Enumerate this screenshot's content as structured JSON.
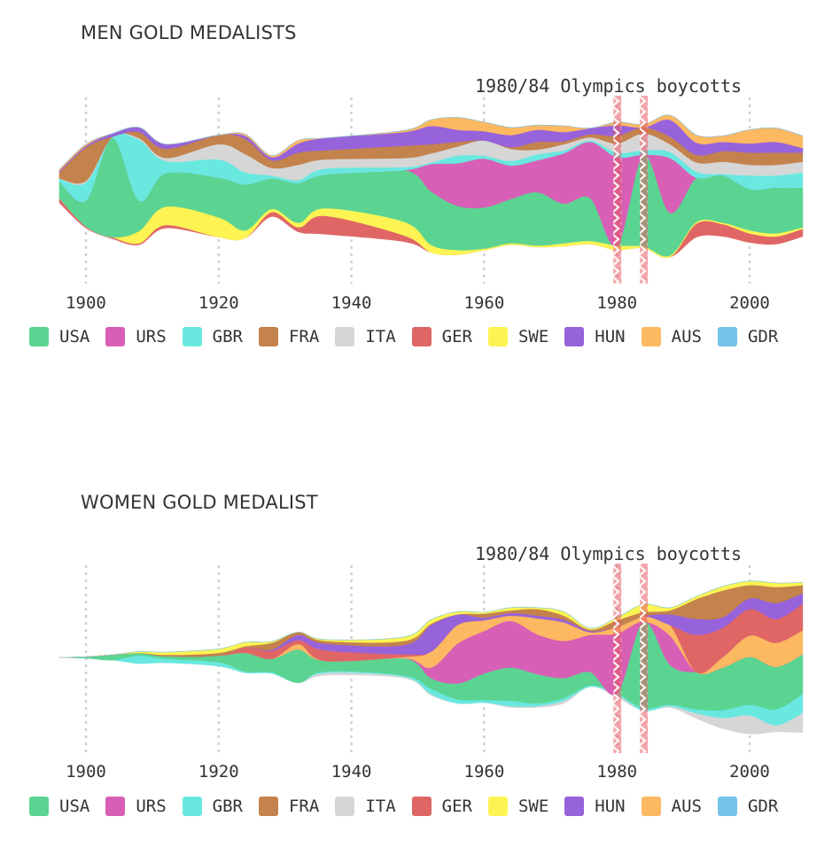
{
  "colors": {
    "USA": "#5bd492",
    "URS": "#d85fb6",
    "GBR": "#69e8e0",
    "FRA": "#c4824c",
    "ITA": "#d6d6d6",
    "GER": "#e06666",
    "SWE": "#fdf453",
    "HUN": "#9763db",
    "AUS": "#fdb862",
    "GDR": "#74c3e8"
  },
  "chart_data": [
    {
      "type": "area",
      "subtype": "streamgraph",
      "title": "MEN GOLD MEDALISTS",
      "annotation": "1980/84 Olympics boycotts",
      "boycott_years": [
        1980,
        1984
      ],
      "xlim": [
        1896,
        2008
      ],
      "x_ticks": [
        "1900",
        "1920",
        "1940",
        "1960",
        "1980",
        "2000"
      ],
      "grid": "vertical dotted at each 20 years",
      "legend": "bottom",
      "x": [
        1896,
        1900,
        1904,
        1908,
        1912,
        1920,
        1924,
        1928,
        1932,
        1936,
        1948,
        1952,
        1956,
        1960,
        1964,
        1968,
        1972,
        1976,
        1980,
        1984,
        1988,
        1992,
        1996,
        2000,
        2004,
        2008
      ],
      "series": [
        {
          "name": "GER",
          "values": [
            3,
            1,
            1,
            1,
            2,
            0,
            0,
            3,
            3,
            12,
            4,
            0,
            0,
            0,
            0,
            0,
            0,
            0,
            0,
            0,
            0,
            9,
            8,
            6,
            5,
            5
          ]
        },
        {
          "name": "SWE",
          "values": [
            0,
            0,
            0,
            8,
            12,
            13,
            5,
            2,
            3,
            5,
            9,
            5,
            3,
            1,
            1,
            1,
            2,
            2,
            3,
            1,
            1,
            1,
            1,
            2,
            2,
            1
          ]
        },
        {
          "name": "USA",
          "values": [
            11,
            17,
            65,
            20,
            22,
            26,
            30,
            20,
            26,
            22,
            34,
            35,
            29,
            27,
            29,
            35,
            26,
            28,
            0,
            60,
            28,
            29,
            31,
            27,
            30,
            26
          ]
        },
        {
          "name": "URS",
          "values": [
            0,
            0,
            0,
            0,
            0,
            0,
            0,
            0,
            0,
            0,
            0,
            18,
            28,
            32,
            22,
            21,
            33,
            37,
            58,
            0,
            36,
            0,
            0,
            0,
            0,
            0
          ]
        },
        {
          "name": "GBR",
          "values": [
            2,
            12,
            1,
            40,
            8,
            12,
            8,
            2,
            2,
            4,
            2,
            1,
            5,
            2,
            3,
            4,
            2,
            1,
            3,
            3,
            4,
            4,
            1,
            9,
            8,
            10
          ]
        },
        {
          "name": "ITA",
          "values": [
            0,
            1,
            0,
            1,
            2,
            10,
            12,
            5,
            10,
            6,
            6,
            6,
            6,
            10,
            8,
            3,
            4,
            2,
            6,
            11,
            5,
            6,
            8,
            7,
            7,
            7
          ]
        },
        {
          "name": "FRA",
          "values": [
            4,
            22,
            0,
            4,
            6,
            6,
            10,
            5,
            8,
            6,
            8,
            6,
            3,
            0,
            1,
            5,
            2,
            2,
            5,
            4,
            5,
            5,
            7,
            8,
            8,
            6
          ]
        },
        {
          "name": "HUN",
          "values": [
            1,
            1,
            2,
            3,
            3,
            0,
            2,
            2,
            6,
            8,
            9,
            12,
            8,
            6,
            8,
            8,
            6,
            4,
            7,
            0,
            11,
            8,
            6,
            6,
            7,
            3
          ]
        },
        {
          "name": "AUS",
          "values": [
            1,
            1,
            0,
            0,
            0,
            0,
            1,
            1,
            2,
            0,
            1,
            4,
            8,
            6,
            5,
            3,
            4,
            0,
            2,
            2,
            3,
            5,
            4,
            9,
            9,
            8
          ]
        },
        {
          "name": "GDR",
          "values": [
            0,
            0,
            0,
            0,
            0,
            0,
            0,
            0,
            0,
            0,
            0,
            0,
            0,
            0,
            0,
            0,
            0,
            0,
            0,
            0,
            0,
            0,
            0,
            0,
            0,
            0
          ]
        }
      ]
    },
    {
      "type": "area",
      "subtype": "streamgraph",
      "title": "WOMEN GOLD MEDALIST",
      "annotation": "1980/84 Olympics boycotts",
      "boycott_years": [
        1980,
        1984
      ],
      "xlim": [
        1896,
        2008
      ],
      "x_ticks": [
        "1900",
        "1920",
        "1940",
        "1960",
        "1980",
        "2000"
      ],
      "grid": "vertical dotted at each 20 years",
      "legend": "bottom",
      "x": [
        1896,
        1900,
        1904,
        1908,
        1912,
        1920,
        1924,
        1928,
        1932,
        1936,
        1948,
        1952,
        1956,
        1960,
        1964,
        1968,
        1972,
        1976,
        1980,
        1984,
        1988,
        1992,
        1996,
        2000,
        2004,
        2008
      ],
      "series": [
        {
          "name": "ITA",
          "values": [
            0,
            0,
            0,
            0,
            0,
            0,
            0,
            0,
            0,
            2,
            1,
            1,
            0,
            0,
            1,
            1,
            2,
            0,
            2,
            0,
            1,
            4,
            8,
            14,
            5,
            15
          ]
        },
        {
          "name": "GBR",
          "values": [
            0,
            0,
            0,
            6,
            3,
            3,
            1,
            1,
            0,
            1,
            1,
            4,
            3,
            2,
            4,
            2,
            2,
            1,
            1,
            2,
            1,
            3,
            6,
            8,
            12,
            14
          ]
        },
        {
          "name": "USA",
          "values": [
            0,
            1,
            4,
            2,
            2,
            5,
            14,
            10,
            25,
            8,
            13,
            8,
            12,
            20,
            25,
            22,
            15,
            10,
            0,
            65,
            30,
            28,
            32,
            36,
            32,
            30
          ]
        },
        {
          "name": "URS",
          "values": [
            0,
            0,
            0,
            0,
            0,
            0,
            0,
            0,
            0,
            0,
            0,
            8,
            30,
            32,
            35,
            30,
            28,
            28,
            45,
            0,
            22,
            0,
            0,
            0,
            0,
            0
          ]
        },
        {
          "name": "AUS",
          "values": [
            0,
            0,
            0,
            0,
            0,
            0,
            0,
            0,
            4,
            0,
            1,
            12,
            14,
            8,
            4,
            12,
            14,
            2,
            5,
            4,
            8,
            0,
            8,
            16,
            18,
            18
          ]
        },
        {
          "name": "GER",
          "values": [
            0,
            0,
            0,
            0,
            0,
            0,
            4,
            6,
            3,
            8,
            2,
            0,
            0,
            0,
            0,
            0,
            0,
            0,
            0,
            0,
            0,
            28,
            22,
            20,
            18,
            20
          ]
        },
        {
          "name": "HUN",
          "values": [
            0,
            0,
            0,
            0,
            0,
            0,
            0,
            1,
            4,
            5,
            7,
            20,
            8,
            2,
            2,
            2,
            2,
            1,
            0,
            0,
            8,
            12,
            8,
            8,
            12,
            8
          ]
        },
        {
          "name": "FRA",
          "values": [
            0,
            0,
            0,
            0,
            1,
            2,
            1,
            5,
            2,
            2,
            3,
            1,
            0,
            3,
            2,
            5,
            3,
            1,
            5,
            3,
            3,
            15,
            20,
            10,
            12,
            6
          ]
        },
        {
          "name": "SWE",
          "values": [
            0,
            0,
            0,
            1,
            2,
            3,
            3,
            1,
            0,
            1,
            3,
            3,
            2,
            1,
            2,
            1,
            3,
            1,
            2,
            6,
            2,
            2,
            3,
            3,
            3,
            2
          ]
        },
        {
          "name": "GDR",
          "values": [
            0,
            0,
            0,
            0,
            0,
            0,
            0,
            0,
            0,
            0,
            0,
            0,
            0,
            0,
            0,
            0,
            0,
            0,
            0,
            0,
            0,
            0,
            0,
            0,
            0,
            0
          ]
        }
      ]
    }
  ],
  "legend": {
    "items": [
      "USA",
      "URS",
      "GBR",
      "FRA",
      "ITA",
      "GER",
      "SWE",
      "HUN",
      "AUS",
      "GDR"
    ]
  }
}
